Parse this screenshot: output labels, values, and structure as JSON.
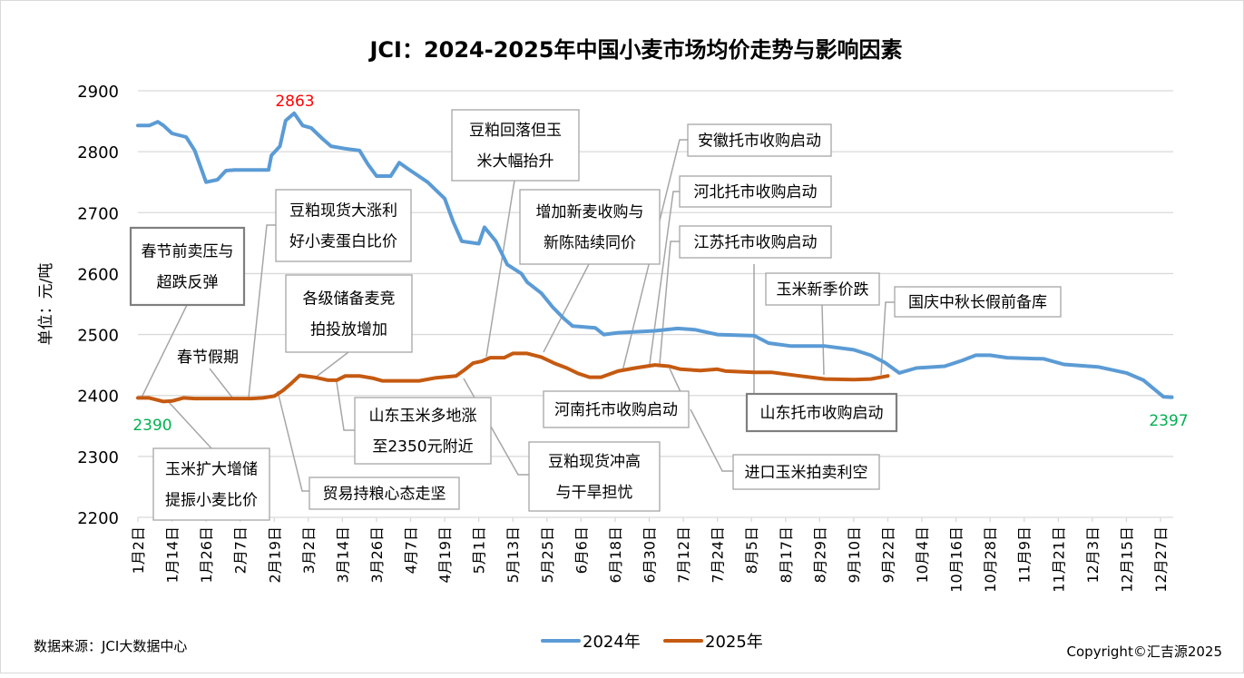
{
  "chart_data": {
    "type": "line",
    "title": "JCI：2024-2025年中国小麦市场均价走势与影响因素",
    "ylabel": "单位：元/吨",
    "xlabel": "",
    "ylim": [
      2200,
      2900
    ],
    "yticks": [
      2200,
      2300,
      2400,
      2500,
      2600,
      2700,
      2800,
      2900
    ],
    "x_unit": "days since 1月2日",
    "xlim": [
      0,
      364
    ],
    "xtick_step_days": 12,
    "xtick_labels": [
      "1月2日",
      "1月14日",
      "1月26日",
      "2月7日",
      "2月19日",
      "3月2日",
      "3月14日",
      "3月26日",
      "4月7日",
      "4月19日",
      "5月1日",
      "5月13日",
      "5月25日",
      "6月6日",
      "6月18日",
      "6月30日",
      "7月12日",
      "7月24日",
      "8月5日",
      "8月17日",
      "8月29日",
      "9月10日",
      "9月22日",
      "10月4日",
      "10月16日",
      "10月28日",
      "11月9日",
      "11月21日",
      "12月3日",
      "12月15日",
      "12月27日"
    ],
    "grid": true,
    "legend_position": "bottom-center",
    "series": [
      {
        "name": "2024年",
        "color": "#5B9BD5",
        "points": [
          [
            0,
            2843
          ],
          [
            4,
            2843
          ],
          [
            7,
            2849
          ],
          [
            9,
            2843
          ],
          [
            12,
            2830
          ],
          [
            17,
            2824
          ],
          [
            20,
            2802
          ],
          [
            24,
            2750
          ],
          [
            28,
            2754
          ],
          [
            31,
            2769
          ],
          [
            34,
            2770
          ],
          [
            46,
            2770
          ],
          [
            47,
            2794
          ],
          [
            50,
            2809
          ],
          [
            52,
            2851
          ],
          [
            55,
            2863
          ],
          [
            58,
            2843
          ],
          [
            61,
            2839
          ],
          [
            65,
            2821
          ],
          [
            68,
            2809
          ],
          [
            73,
            2805
          ],
          [
            78,
            2802
          ],
          [
            81,
            2779
          ],
          [
            84,
            2760
          ],
          [
            89,
            2760
          ],
          [
            92,
            2782
          ],
          [
            95,
            2772
          ],
          [
            102,
            2750
          ],
          [
            108,
            2723
          ],
          [
            111,
            2685
          ],
          [
            114,
            2653
          ],
          [
            120,
            2649
          ],
          [
            122,
            2676
          ],
          [
            126,
            2653
          ],
          [
            130,
            2615
          ],
          [
            135,
            2600
          ],
          [
            137,
            2586
          ],
          [
            142,
            2568
          ],
          [
            146,
            2545
          ],
          [
            150,
            2526
          ],
          [
            153,
            2514
          ],
          [
            161,
            2511
          ],
          [
            164,
            2500
          ],
          [
            169,
            2503
          ],
          [
            182,
            2506
          ],
          [
            190,
            2510
          ],
          [
            196,
            2508
          ],
          [
            204,
            2500
          ],
          [
            217,
            2498
          ],
          [
            222,
            2486
          ],
          [
            230,
            2481
          ],
          [
            242,
            2481
          ],
          [
            252,
            2475
          ],
          [
            258,
            2466
          ],
          [
            263,
            2454
          ],
          [
            268,
            2437
          ],
          [
            274,
            2445
          ],
          [
            284,
            2448
          ],
          [
            290,
            2457
          ],
          [
            295,
            2466
          ],
          [
            300,
            2466
          ],
          [
            306,
            2462
          ],
          [
            319,
            2460
          ],
          [
            326,
            2451
          ],
          [
            338,
            2447
          ],
          [
            348,
            2437
          ],
          [
            354,
            2425
          ],
          [
            361,
            2398
          ],
          [
            364,
            2397
          ]
        ]
      },
      {
        "name": "2025年",
        "color": "#C55A11",
        "points": [
          [
            0,
            2396
          ],
          [
            4,
            2396
          ],
          [
            9,
            2390
          ],
          [
            12,
            2391
          ],
          [
            16,
            2396
          ],
          [
            20,
            2395
          ],
          [
            40,
            2395
          ],
          [
            44,
            2396
          ],
          [
            48,
            2399
          ],
          [
            51,
            2408
          ],
          [
            54,
            2420
          ],
          [
            57,
            2433
          ],
          [
            62,
            2430
          ],
          [
            67,
            2425
          ],
          [
            70,
            2425
          ],
          [
            73,
            2432
          ],
          [
            78,
            2432
          ],
          [
            83,
            2428
          ],
          [
            86,
            2424
          ],
          [
            92,
            2424
          ],
          [
            99,
            2424
          ],
          [
            105,
            2429
          ],
          [
            112,
            2432
          ],
          [
            115,
            2442
          ],
          [
            118,
            2453
          ],
          [
            121,
            2456
          ],
          [
            124,
            2462
          ],
          [
            129,
            2462
          ],
          [
            132,
            2469
          ],
          [
            137,
            2469
          ],
          [
            142,
            2463
          ],
          [
            147,
            2452
          ],
          [
            151,
            2445
          ],
          [
            155,
            2436
          ],
          [
            159,
            2430
          ],
          [
            163,
            2430
          ],
          [
            169,
            2440
          ],
          [
            175,
            2445
          ],
          [
            182,
            2450
          ],
          [
            187,
            2448
          ],
          [
            191,
            2443
          ],
          [
            198,
            2441
          ],
          [
            204,
            2443
          ],
          [
            207,
            2440
          ],
          [
            217,
            2438
          ],
          [
            223,
            2438
          ],
          [
            233,
            2432
          ],
          [
            242,
            2427
          ],
          [
            252,
            2426
          ],
          [
            258,
            2427
          ],
          [
            264,
            2432
          ]
        ]
      }
    ],
    "data_labels": [
      {
        "text": "2863",
        "color": "#FF0000"
      },
      {
        "text": "2390",
        "color": "#00B050"
      },
      {
        "text": "2397",
        "color": "#00B050"
      }
    ],
    "annotations": [
      {
        "lines": [
          "春节前卖压与",
          "超跌反弹"
        ]
      },
      {
        "lines": [
          "春节假期"
        ]
      },
      {
        "lines": [
          "豆粕现货大涨利",
          "好小麦蛋白比价"
        ]
      },
      {
        "lines": [
          "各级储备麦竞",
          "拍投放增加"
        ]
      },
      {
        "lines": [
          "豆粕回落但玉",
          "米大幅抬升"
        ]
      },
      {
        "lines": [
          "增加新麦收购与",
          "新陈陆续同价"
        ]
      },
      {
        "lines": [
          "安徽托市收购启动"
        ]
      },
      {
        "lines": [
          "河北托市收购启动"
        ]
      },
      {
        "lines": [
          "江苏托市收购启动"
        ]
      },
      {
        "lines": [
          "玉米新季价跌"
        ]
      },
      {
        "lines": [
          "国庆中秋长假前备库"
        ]
      },
      {
        "lines": [
          "山东托市收购启动"
        ]
      },
      {
        "lines": [
          "河南托市收购启动"
        ]
      },
      {
        "lines": [
          "进口玉米拍卖利空"
        ]
      },
      {
        "lines": [
          "山东玉米多地涨",
          "至2350元附近"
        ]
      },
      {
        "lines": [
          "豆粕现货冲高",
          "与干旱担忧"
        ]
      },
      {
        "lines": [
          "贸易持粮心态走坚"
        ]
      },
      {
        "lines": [
          "玉米扩大增储",
          "提振小麦比价"
        ]
      }
    ]
  },
  "footer": {
    "source": "数据来源：JCI大数据中心",
    "copyright": "Copyright©汇吉源2025"
  }
}
